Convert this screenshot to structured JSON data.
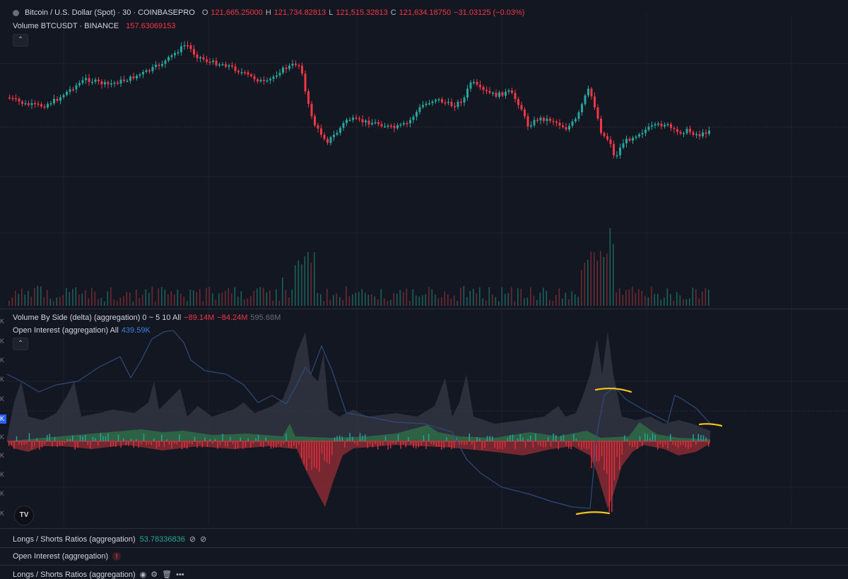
{
  "header": {
    "symbol_title": "Bitcoin / U.S. Dollar (Spot) · 30 · COINBASEPRO",
    "ohlc": {
      "o_label": "O",
      "o_value": "121,665.25000",
      "h_label": "H",
      "h_value": "121,734.82813",
      "l_label": "L",
      "l_value": "121,515.32813",
      "c_label": "C",
      "c_value": "121,634.18750",
      "change": "−31.03125 (−0.03%)"
    }
  },
  "volume_legend": {
    "label": "Volume BTCUSDT · BINANCE",
    "value": "157.63069153"
  },
  "pane2": {
    "vbs_label": "Volume By Side (delta) (aggregation) 0 ~ 5 10 All",
    "vbs_values": [
      "−89.14M",
      "−84.24M",
      "595.68M"
    ],
    "oi_label": "Open Interest (aggregation) All",
    "oi_value": "439.59K",
    "axis_ticks": [
      "K",
      "K",
      "K",
      "K",
      "K",
      "K",
      "K",
      "K",
      "K",
      "K"
    ],
    "price_tag": "K"
  },
  "bottom": {
    "ls_label": "Longs / Shorts Ratios (aggregation)",
    "ls_value": "53.78336836",
    "ls_icons": [
      "⊘",
      "⊘"
    ],
    "oi2_label": "Open Interest (aggregation)",
    "oi2_warn": "!",
    "ls2_label": "Longs / Shorts Ratios (aggregation)",
    "ls2_icons": [
      "◉",
      "⚙",
      "🗑",
      "•••"
    ]
  },
  "logo_text": "TV",
  "colors": {
    "background": "#131722",
    "up": "#26a69a",
    "down": "#f23645",
    "oi_line": "#2f4a7a",
    "highlight": "#f5c518"
  }
}
